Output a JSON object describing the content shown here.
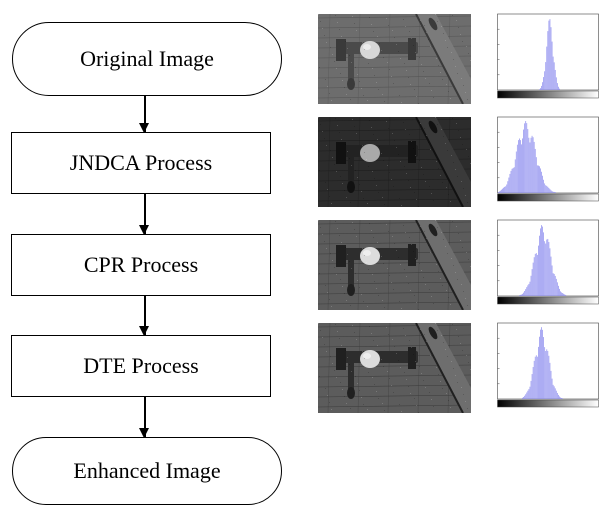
{
  "flowchart": {
    "start": "Original Image",
    "steps": [
      "JNDCA Process",
      "CPR Process",
      "DTE Process"
    ],
    "end": "Enhanced Image"
  },
  "stages": [
    {
      "name": "original",
      "tone": "gray",
      "peak": 0.52,
      "spread": 0.035
    },
    {
      "name": "jndca",
      "tone": "dark",
      "peak": 0.28,
      "spread": 0.1
    },
    {
      "name": "cpr",
      "tone": "mid",
      "peak": 0.45,
      "spread": 0.08
    },
    {
      "name": "dte",
      "tone": "mid",
      "peak": 0.44,
      "spread": 0.07
    }
  ],
  "colors": {
    "hist_bar": "#8a8aee",
    "stroke": "#000000"
  }
}
